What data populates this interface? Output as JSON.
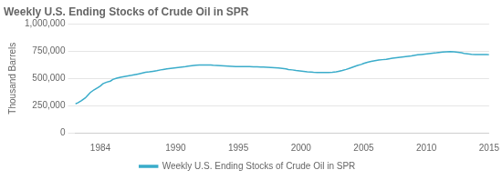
{
  "chart_data": {
    "type": "line",
    "title": "Weekly U.S. Ending Stocks of Crude Oil in SPR",
    "ylabel": "Thousand Barrels",
    "x": [
      1982.0,
      1982.2,
      1982.5,
      1982.8,
      1983.0,
      1983.2,
      1983.5,
      1983.8,
      1984.0,
      1984.2,
      1984.5,
      1984.8,
      1985.0,
      1985.3,
      1985.6,
      1985.9,
      1986.2,
      1986.5,
      1986.8,
      1987.0,
      1987.3,
      1987.6,
      1987.9,
      1988.2,
      1988.5,
      1988.8,
      1989.0,
      1989.3,
      1989.6,
      1989.9,
      1990.2,
      1990.5,
      1990.8,
      1991.0,
      1991.3,
      1991.6,
      1991.9,
      1992.2,
      1992.5,
      1992.8,
      1993.0,
      1993.3,
      1993.6,
      1993.9,
      1994.2,
      1994.5,
      1994.8,
      1995.0,
      1995.3,
      1995.6,
      1995.9,
      1996.2,
      1996.5,
      1996.8,
      1997.0,
      1997.3,
      1997.6,
      1997.9,
      1998.2,
      1998.5,
      1998.8,
      1999.0,
      1999.3,
      1999.6,
      1999.9,
      2000.2,
      2000.5,
      2000.8,
      2001.0,
      2001.3,
      2001.6,
      2001.9,
      2002.2,
      2002.5,
      2002.8,
      2003.0,
      2003.3,
      2003.6,
      2003.9,
      2004.2,
      2004.5,
      2004.8,
      2005.0,
      2005.3,
      2005.6,
      2005.9,
      2006.2,
      2006.5,
      2006.8,
      2007.0,
      2007.3,
      2007.6,
      2007.9,
      2008.2,
      2008.5,
      2008.8,
      2009.0,
      2009.3,
      2009.6,
      2009.9,
      2010.2,
      2010.5,
      2010.8,
      2011.0,
      2011.3,
      2011.6,
      2011.9,
      2012.2,
      2012.5,
      2012.8,
      2013.0,
      2013.3,
      2013.6,
      2013.9,
      2014.2,
      2014.5,
      2014.8,
      2015.0
    ],
    "series": [
      {
        "name": "Weekly U.S. Ending Stocks of Crude Oil in SPR",
        "color": "#3AACCA",
        "values": [
          265000,
          275000,
          295000,
          320000,
          345000,
          370000,
          395000,
          415000,
          430000,
          450000,
          465000,
          475000,
          490000,
          502000,
          510000,
          516000,
          522000,
          528000,
          535000,
          540000,
          548000,
          556000,
          560000,
          565000,
          570000,
          578000,
          582000,
          588000,
          592000,
          596000,
          600000,
          604000,
          608000,
          612000,
          616000,
          620000,
          622000,
          622000,
          622000,
          622000,
          620000,
          618000,
          616000,
          614000,
          612000,
          610000,
          608000,
          608000,
          608000,
          608000,
          608000,
          606000,
          606000,
          604000,
          604000,
          602000,
          600000,
          598000,
          596000,
          592000,
          588000,
          582000,
          578000,
          572000,
          568000,
          564000,
          560000,
          558000,
          556000,
          554000,
          553000,
          553000,
          554000,
          556000,
          560000,
          565000,
          572000,
          582000,
          594000,
          606000,
          618000,
          628000,
          638000,
          648000,
          656000,
          662000,
          668000,
          672000,
          676000,
          680000,
          685000,
          690000,
          694000,
          698000,
          702000,
          706000,
          710000,
          716000,
          720000,
          724000,
          728000,
          732000,
          735000,
          738000,
          742000,
          745000,
          746000,
          745000,
          740000,
          735000,
          730000,
          726000,
          722000,
          720000,
          720000,
          720000,
          720000,
          718000
        ]
      }
    ],
    "xlim": [
      1982,
      2015
    ],
    "xticks": [
      1984,
      1990,
      1995,
      2000,
      2005,
      2010,
      2015
    ],
    "ylim": [
      0,
      1000000
    ],
    "yticks": [
      0,
      {
        "value": 250000,
        "label": "250,000"
      },
      {
        "value": 500000,
        "label": "500,000"
      },
      {
        "value": 750000,
        "label": "750,000"
      },
      {
        "value": 1000000,
        "label": "1,000,000"
      }
    ],
    "grid": "y",
    "legend": "bottom"
  }
}
